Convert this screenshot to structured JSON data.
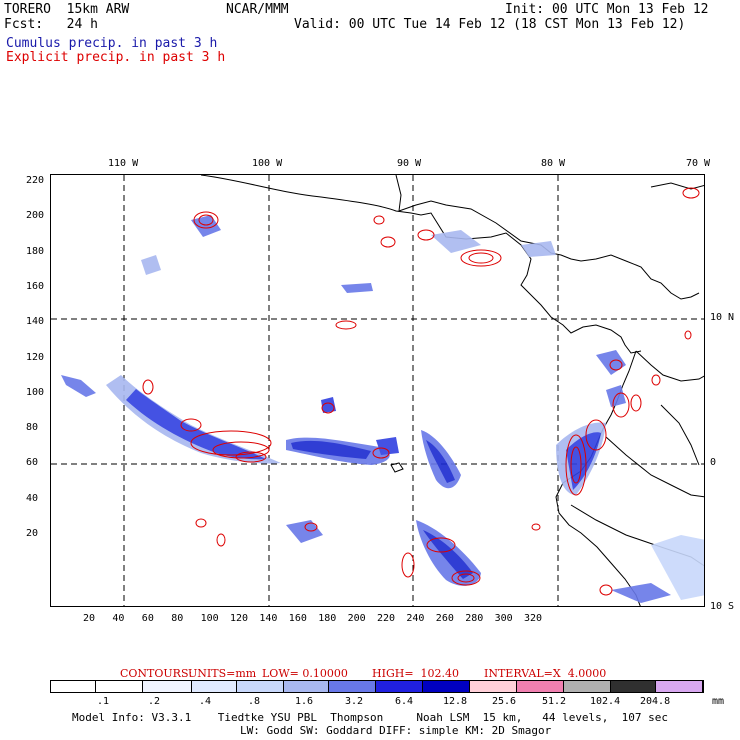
{
  "header": {
    "model": "TORERO  15km ARW",
    "center": "NCAR/MMM",
    "init": "Init: 00 UTC Mon 13 Feb 12",
    "fcst": "Fcst:   24 h",
    "valid": "Valid: 00 UTC Tue 14 Feb 12 (18 CST Mon 13 Feb 12)",
    "legend_cumulus": "Cumulus precip. in past 3 h",
    "legend_explicit": "Explicit precip. in past 3 h",
    "legend_cumulus_color": "#0000cc",
    "legend_explicit_color": "#dd0000"
  },
  "map": {
    "top_lon_labels": [
      "110 W",
      "100 W",
      "90 W",
      "80 W",
      "70 W"
    ],
    "right_lat_labels": [
      "10 N",
      "0",
      "10 S"
    ],
    "left_y_labels": [
      "220",
      "200",
      "180",
      "160",
      "140",
      "120",
      "100",
      "80",
      "60",
      "40",
      "20"
    ],
    "bottom_x_labels": [
      "20",
      "40",
      "60",
      "80",
      "100",
      "120",
      "140",
      "160",
      "180",
      "200",
      "220",
      "240",
      "260",
      "280",
      "300",
      "320"
    ],
    "land_color": "#ffffff",
    "coast_color": "#000000"
  },
  "contours": {
    "title": "CONTOURS:",
    "units": "UNITS=mm",
    "low": "LOW= 0.10000",
    "high": "HIGH=  102.40",
    "interval": "INTERVAL=X  4.0000"
  },
  "colorbar": {
    "labels": [
      ".1",
      ".2",
      ".4",
      ".8",
      "1.6",
      "3.2",
      "6.4",
      "12.8",
      "25.6",
      "51.2",
      "102.4",
      "204.8"
    ],
    "unit": "mm",
    "colors": [
      "#ffffff",
      "#ffffff",
      "#f0f4ff",
      "#e0eaff",
      "#c8d8fb",
      "#a8b8f0",
      "#6878e8",
      "#2020e0",
      "#0000c0",
      "#ffd0d8",
      "#f080b0",
      "#b0b0b0",
      "#303030",
      "#d8a8f0"
    ]
  },
  "footer": {
    "line1": "Model Info: V3.3.1    Tiedtke YSU PBL  Thompson     Noah LSM  15 km,   44 levels,  107 sec",
    "line2": "LW: Godd SW: Goddard DIFF: simple KM: 2D Smagor"
  }
}
